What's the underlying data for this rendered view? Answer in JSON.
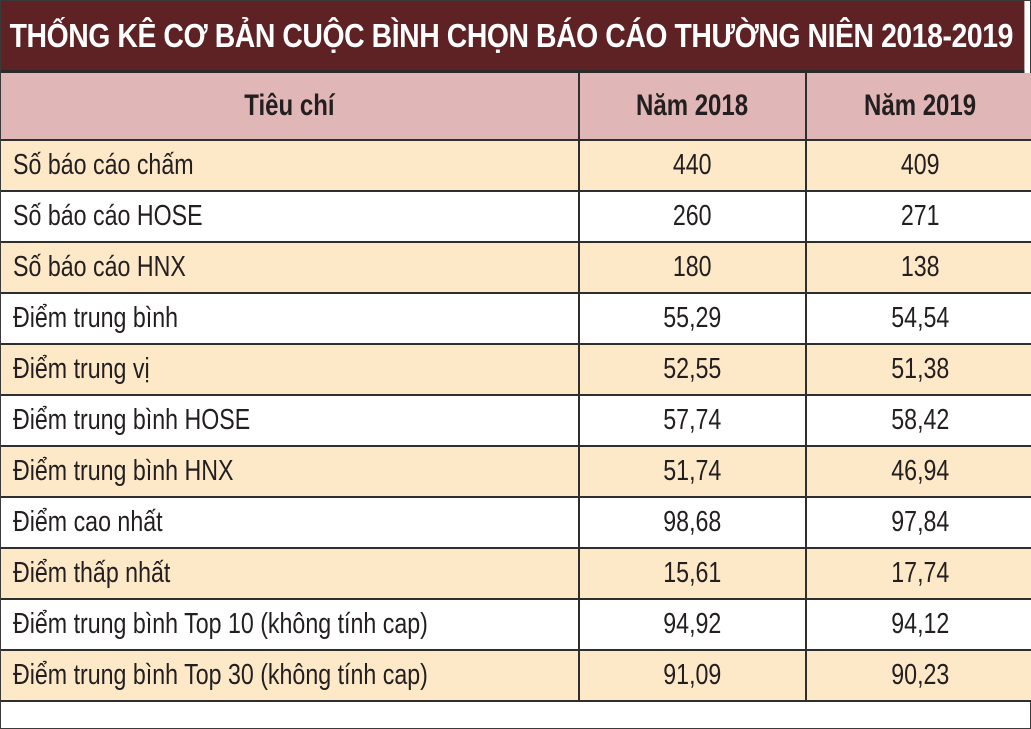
{
  "title": "THỐNG KÊ CƠ BẢN CUỘC BÌNH CHỌN BÁO CÁO THƯỜNG NIÊN 2018-2019",
  "colors": {
    "title_bg": "#5e2224",
    "header_bg": "#e1b6b7",
    "odd_row_bg": "#fde8c8",
    "even_row_bg": "#ffffff"
  },
  "table": {
    "headers": [
      "Tiêu chí",
      "Năm 2018",
      "Năm 2019"
    ],
    "rows": [
      {
        "label": "Số báo cáo chấm",
        "y2018": "440",
        "y2019": "409"
      },
      {
        "label": "Số báo cáo HOSE",
        "y2018": "260",
        "y2019": "271"
      },
      {
        "label": "Số báo cáo HNX",
        "y2018": "180",
        "y2019": "138"
      },
      {
        "label": "Điểm trung bình",
        "y2018": "55,29",
        "y2019": "54,54"
      },
      {
        "label": "Điểm trung vị",
        "y2018": "52,55",
        "y2019": "51,38"
      },
      {
        "label": "Điểm trung bình HOSE",
        "y2018": "57,74",
        "y2019": "58,42"
      },
      {
        "label": "Điểm trung bình HNX",
        "y2018": "51,74",
        "y2019": "46,94"
      },
      {
        "label": "Điểm cao nhất",
        "y2018": "98,68",
        "y2019": "97,84"
      },
      {
        "label": "Điểm thấp nhất",
        "y2018": "15,61",
        "y2019": "17,74"
      },
      {
        "label": "Điểm trung bình Top 10 (không tính cap)",
        "y2018": "94,92",
        "y2019": "94,12"
      },
      {
        "label": "Điểm trung bình Top 30 (không tính cap)",
        "y2018": "91,09",
        "y2019": "90,23"
      }
    ]
  },
  "chart_data": {
    "type": "table",
    "title": "THỐNG KÊ CƠ BẢN CUỘC BÌNH CHỌN BÁO CÁO THƯỜNG NIÊN 2018-2019",
    "columns": [
      "Tiêu chí",
      "Năm 2018",
      "Năm 2019"
    ],
    "categories": [
      "Số báo cáo chấm",
      "Số báo cáo HOSE",
      "Số báo cáo HNX",
      "Điểm trung bình",
      "Điểm trung vị",
      "Điểm trung bình HOSE",
      "Điểm trung bình HNX",
      "Điểm cao nhất",
      "Điểm thấp nhất",
      "Điểm trung bình Top 10 (không tính cap)",
      "Điểm trung bình Top 30 (không tính cap)"
    ],
    "series": [
      {
        "name": "Năm 2018",
        "values": [
          440,
          260,
          180,
          55.29,
          52.55,
          57.74,
          51.74,
          98.68,
          15.61,
          94.92,
          91.09
        ]
      },
      {
        "name": "Năm 2019",
        "values": [
          409,
          271,
          138,
          54.54,
          51.38,
          58.42,
          46.94,
          97.84,
          17.74,
          94.12,
          90.23
        ]
      }
    ]
  }
}
